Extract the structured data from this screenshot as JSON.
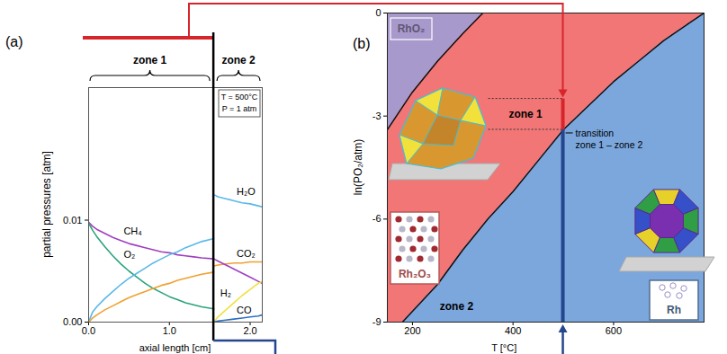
{
  "chart_data": [
    {
      "type": "line",
      "panel": "(a)",
      "x_label": "axial length [cm]",
      "y_label": "partial pressures [atm]",
      "xlim": [
        0,
        2.15
      ],
      "xticks": [
        {
          "value": 0,
          "label": "0.0"
        },
        {
          "value": 1,
          "label": "1.0"
        },
        {
          "value": 2,
          "label": "2.0"
        }
      ],
      "ylim": [
        0,
        0.023
      ],
      "yticks": [
        {
          "value": 0,
          "label": "0.00"
        },
        {
          "value": 0.01,
          "label": "0.01"
        }
      ],
      "annotation": [
        "T = 500°C",
        "P = 1 atm"
      ],
      "zones": [
        {
          "label": "zone 1",
          "x": [
            0,
            0.05,
            0.1,
            0.2,
            0.3,
            0.4,
            0.5,
            0.6,
            0.7,
            0.8,
            0.9,
            1.0,
            1.1,
            1.2,
            1.3,
            1.4,
            1.55
          ],
          "series": [
            {
              "name": "CH₄",
              "color": "#a040c0",
              "values": [
                0.0098,
                0.0094,
                0.0091,
                0.0087,
                0.0083,
                0.008,
                0.0077,
                0.0075,
                0.0073,
                0.0071,
                0.0069,
                0.0068,
                0.0066,
                0.0065,
                0.0064,
                0.0063,
                0.0062
              ]
            },
            {
              "name": "O₂",
              "color": "#2aa37a",
              "values": [
                0.0097,
                0.009,
                0.0084,
                0.0074,
                0.0065,
                0.0057,
                0.005,
                0.0044,
                0.0038,
                0.0033,
                0.0029,
                0.0025,
                0.0022,
                0.0019,
                0.0017,
                0.0015,
                0.0013
              ]
            },
            {
              "color": "#5bb8e8",
              "values": [
                0.0,
                0.001,
                0.0015,
                0.0023,
                0.003,
                0.0037,
                0.0043,
                0.0048,
                0.0053,
                0.0058,
                0.0062,
                0.0066,
                0.0069,
                0.0073,
                0.0076,
                0.0079,
                0.0082
              ]
            },
            {
              "color": "#f0a030",
              "values": [
                0.0,
                0.0004,
                0.0007,
                0.0012,
                0.0016,
                0.002,
                0.0024,
                0.0027,
                0.003,
                0.0033,
                0.0036,
                0.0038,
                0.0041,
                0.0043,
                0.0045,
                0.0047,
                0.0049
              ]
            }
          ]
        },
        {
          "label": "zone 2",
          "x": [
            1.55,
            1.6,
            1.7,
            1.8,
            1.9,
            2.0,
            2.1,
            2.15
          ],
          "series": [
            {
              "name": "H₂O",
              "color": "#5bb8e8",
              "values": [
                0.0125,
                0.0123,
                0.0121,
                0.0119,
                0.0117,
                0.0116,
                0.0114,
                0.0113
              ]
            },
            {
              "name": "CO₂",
              "color": "#f0a030",
              "values": [
                0.0055,
                0.0056,
                0.0057,
                0.0058,
                0.0058,
                0.0059,
                0.0059,
                0.0059
              ]
            },
            {
              "color": "#a040c0",
              "values": [
                0.0062,
                0.006,
                0.0056,
                0.0052,
                0.0048,
                0.0044,
                0.004,
                0.0038
              ]
            },
            {
              "name": "H₂",
              "color": "#f0e040",
              "values": [
                0.0,
                0.0005,
                0.0012,
                0.0019,
                0.0026,
                0.0032,
                0.0038,
                0.004
              ]
            },
            {
              "name": "CO",
              "color": "#2e6fc0",
              "values": [
                0.0,
                0.0001,
                0.0002,
                0.0003,
                0.0004,
                0.0005,
                0.0006,
                0.0007
              ]
            }
          ]
        }
      ]
    },
    {
      "type": "area",
      "panel": "(b)",
      "x_label": "T [°C]",
      "y_label": "ln(PO₂/atm)",
      "xlim": [
        150,
        780
      ],
      "xticks": [
        200,
        400,
        600
      ],
      "ylim": [
        -9,
        0
      ],
      "yticks": [
        -9,
        -6,
        -3,
        0
      ],
      "boundaries": [
        {
          "x": [
            150,
            200,
            250,
            300,
            340
          ],
          "y": [
            -3.4,
            -2.3,
            -1.4,
            -0.6,
            0
          ]
        },
        {
          "x": [
            180,
            250,
            300,
            350,
            400,
            450,
            500,
            550,
            600,
            650,
            700,
            750,
            780
          ],
          "y": [
            -9,
            -7.9,
            -6.9,
            -6.0,
            -5.2,
            -4.3,
            -3.4,
            -2.7,
            -2.0,
            -1.4,
            -0.8,
            -0.3,
            0
          ]
        }
      ],
      "phases": [
        {
          "name": "RhO₂",
          "color": "#a899cc"
        },
        {
          "name": "Rh₂O₃",
          "color": "#f27676"
        },
        {
          "name": "Rh",
          "color": "#7ba7dd"
        }
      ],
      "zones": [
        {
          "label": "zone 1",
          "color": "#d7262b",
          "range": [
            -3.4,
            -2.5
          ]
        },
        {
          "label": "zone 2",
          "color": "#24468f",
          "range": [
            -9,
            -3.4
          ]
        }
      ],
      "transition": {
        "label": [
          "transition",
          "zone 1 – zone 2"
        ],
        "x": 500,
        "y": -3.4
      }
    }
  ]
}
